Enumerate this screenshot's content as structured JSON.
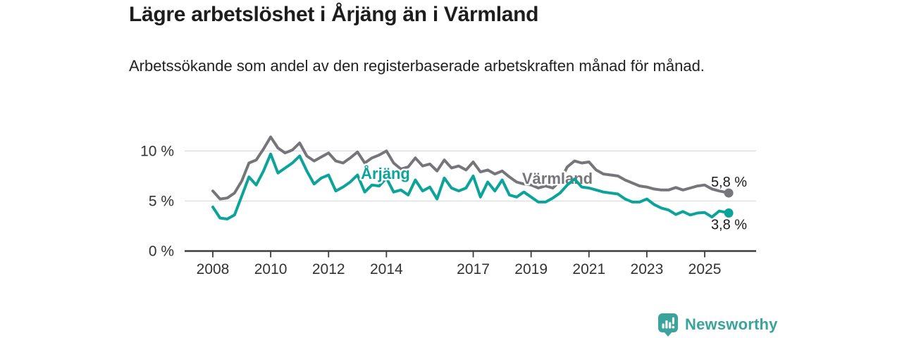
{
  "header": {
    "title": "Lägre arbetslöshet i Årjäng än i Värmland",
    "subtitle": "Arbetssökande som andel av den registerbaserade arbetskraften månad för månad."
  },
  "chart_data": {
    "type": "line",
    "title": "Lägre arbetslöshet i Årjäng än i Värmland",
    "subtitle": "Arbetssökande som andel av den registerbaserade arbetskraften månad för månad.",
    "unit": "%",
    "grid": true,
    "legend_position": "inline-labels",
    "xlim": [
      2007.9,
      2026.8
    ],
    "ylim": [
      0,
      12
    ],
    "xticks": [
      {
        "value": 2008,
        "label": "2008"
      },
      {
        "value": 2010,
        "label": "2010"
      },
      {
        "value": 2012,
        "label": "2012"
      },
      {
        "value": 2014,
        "label": "2014"
      },
      {
        "value": 2017,
        "label": "2017"
      },
      {
        "value": 2019,
        "label": "2019"
      },
      {
        "value": 2021,
        "label": "2021"
      },
      {
        "value": 2023,
        "label": "2023"
      },
      {
        "value": 2025,
        "label": "2025"
      }
    ],
    "yticks": [
      {
        "value": 0,
        "label": "0 %"
      },
      {
        "value": 5,
        "label": "5 %"
      },
      {
        "value": 10,
        "label": "10 %"
      }
    ],
    "x": [
      2008.0,
      2008.25,
      2008.5,
      2008.75,
      2009.0,
      2009.25,
      2009.5,
      2009.75,
      2010.0,
      2010.25,
      2010.5,
      2010.75,
      2011.0,
      2011.25,
      2011.5,
      2011.75,
      2012.0,
      2012.25,
      2012.5,
      2012.75,
      2013.0,
      2013.25,
      2013.5,
      2013.75,
      2014.0,
      2014.25,
      2014.5,
      2014.75,
      2015.0,
      2015.25,
      2015.5,
      2015.75,
      2016.0,
      2016.25,
      2016.5,
      2016.75,
      2017.0,
      2017.25,
      2017.5,
      2017.75,
      2018.0,
      2018.25,
      2018.5,
      2018.75,
      2019.0,
      2019.25,
      2019.5,
      2019.75,
      2020.0,
      2020.25,
      2020.5,
      2020.75,
      2021.0,
      2021.25,
      2021.5,
      2021.75,
      2022.0,
      2022.25,
      2022.5,
      2022.75,
      2023.0,
      2023.25,
      2023.5,
      2023.75,
      2024.0,
      2024.25,
      2024.5,
      2024.75,
      2025.0,
      2025.25,
      2025.5,
      2025.83
    ],
    "series": [
      {
        "name": "Värmland",
        "color": "#76767a",
        "end_label": "5,8 %",
        "end_value": 5.8,
        "values": [
          6.0,
          5.2,
          5.3,
          5.8,
          7.0,
          8.8,
          9.1,
          10.2,
          11.4,
          10.3,
          9.8,
          10.1,
          10.8,
          9.5,
          9.0,
          9.4,
          9.8,
          9.0,
          8.8,
          9.3,
          9.9,
          8.8,
          9.3,
          9.6,
          10.0,
          8.8,
          8.2,
          8.4,
          9.3,
          8.5,
          8.7,
          8.0,
          9.1,
          8.3,
          8.5,
          8.1,
          8.9,
          7.9,
          8.1,
          7.7,
          8.0,
          7.4,
          6.9,
          6.7,
          6.6,
          6.3,
          6.5,
          6.3,
          7.0,
          8.4,
          9.0,
          8.8,
          8.9,
          8.1,
          7.7,
          7.6,
          7.5,
          7.1,
          6.8,
          6.5,
          6.4,
          6.2,
          6.1,
          6.1,
          6.35,
          6.1,
          6.3,
          6.5,
          6.6,
          6.2,
          6.0,
          5.8
        ]
      },
      {
        "name": "Årjäng",
        "color": "#0ca39a",
        "end_label": "3,8 %",
        "end_value": 3.8,
        "values": [
          4.4,
          3.3,
          3.2,
          3.6,
          5.5,
          7.4,
          6.6,
          8.0,
          9.7,
          7.8,
          8.3,
          8.8,
          9.5,
          8.0,
          6.7,
          7.3,
          7.6,
          6.0,
          6.4,
          6.9,
          7.6,
          5.9,
          6.6,
          6.5,
          7.3,
          5.9,
          6.1,
          5.6,
          7.1,
          6.0,
          6.4,
          5.2,
          7.3,
          6.3,
          6.0,
          6.3,
          7.5,
          5.4,
          6.9,
          6.0,
          7.1,
          5.6,
          5.4,
          5.9,
          5.4,
          4.9,
          4.9,
          5.3,
          5.8,
          6.6,
          7.2,
          6.4,
          6.3,
          6.1,
          5.9,
          5.8,
          5.7,
          5.2,
          4.9,
          4.9,
          5.2,
          4.65,
          4.3,
          4.1,
          3.65,
          3.95,
          3.6,
          3.8,
          3.85,
          3.4,
          4.0,
          3.8
        ]
      }
    ]
  },
  "footer": {
    "brand": "Newsworthy",
    "brand_color": "#3aa49c",
    "logo_icon": "newsworthy-chart-bubble-icon"
  }
}
